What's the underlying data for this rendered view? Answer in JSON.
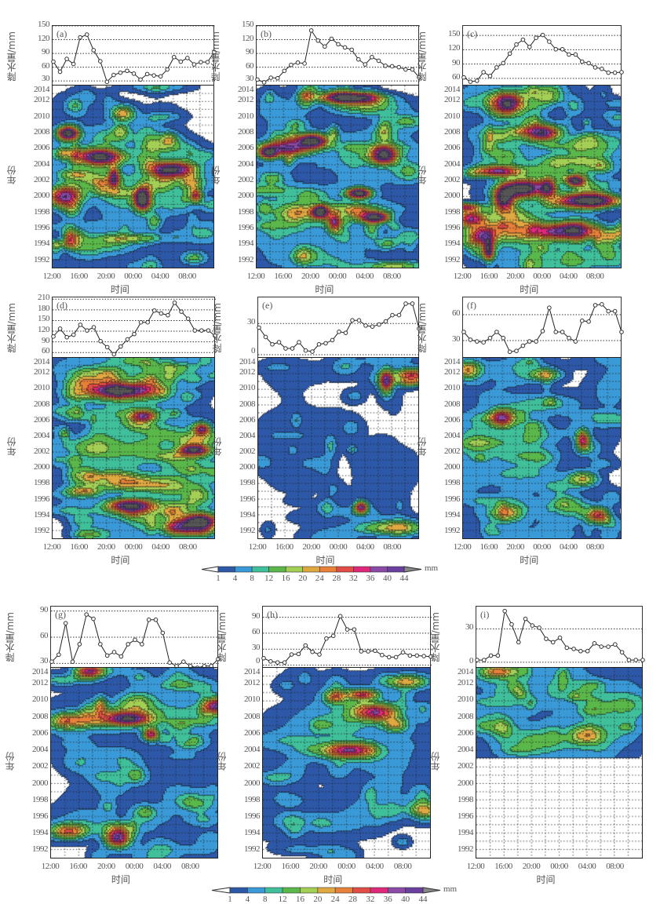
{
  "common": {
    "line_ylabel": "降水量/mm",
    "field_ylabel": "年份",
    "xlabel": "时间",
    "xticks": [
      "12:00",
      "16:00",
      "20:00",
      "00:00",
      "04:00",
      "08:00"
    ],
    "year_ticks": [
      "1992",
      "1994",
      "1996",
      "1998",
      "2000",
      "2002",
      "2004",
      "2006",
      "2008",
      "2010",
      "2012",
      "2014"
    ]
  },
  "colorbar": {
    "unit": "mm",
    "ticks": [
      "1",
      "4",
      "8",
      "12",
      "16",
      "20",
      "24",
      "28",
      "32",
      "36",
      "40",
      "44"
    ],
    "colors": [
      "#2d58a8",
      "#3a9ad8",
      "#3fbf9a",
      "#5ab84a",
      "#a3cf55",
      "#e0a840",
      "#e8803a",
      "#e44d45",
      "#e0287a",
      "#8b4aa8",
      "#6a3fa0"
    ],
    "over_color": "#888888",
    "under_color": "#ffffff"
  },
  "chart_data": [
    {
      "panel": "(a)",
      "type": "line",
      "x_hours_from_1200": "0-24",
      "ylim": [
        20,
        150
      ],
      "yticks": [
        "30",
        "60",
        "90",
        "120",
        "150"
      ],
      "values": [
        72,
        50,
        78,
        67,
        125,
        131,
        97,
        73,
        28,
        43,
        48,
        52,
        46,
        33,
        45,
        42,
        40,
        55,
        82,
        72,
        80,
        66,
        71,
        71,
        93
      ]
    },
    {
      "panel": "(b)",
      "type": "line",
      "ylim": [
        20,
        150
      ],
      "yticks": [
        "30",
        "60",
        "90",
        "120",
        "150"
      ],
      "values": [
        33,
        27,
        37,
        36,
        52,
        65,
        70,
        68,
        140,
        118,
        105,
        122,
        110,
        103,
        98,
        77,
        66,
        82,
        74,
        63,
        62,
        60,
        55,
        55,
        38
      ]
    },
    {
      "panel": "(c)",
      "type": "line",
      "ylim": [
        45,
        170
      ],
      "yticks": [
        "60",
        "90",
        "120",
        "150"
      ],
      "values": [
        62,
        53,
        55,
        73,
        65,
        83,
        92,
        112,
        131,
        141,
        126,
        145,
        151,
        137,
        121,
        121,
        110,
        110,
        95,
        92,
        83,
        80,
        72,
        72,
        73
      ]
    },
    {
      "panel": "(d)",
      "type": "line",
      "ylim": [
        45,
        215
      ],
      "yticks": [
        "60",
        "90",
        "120",
        "150",
        "180",
        "210"
      ],
      "values": [
        105,
        127,
        103,
        110,
        138,
        122,
        131,
        92,
        75,
        55,
        77,
        97,
        112,
        145,
        145,
        178,
        170,
        165,
        200,
        175,
        155,
        122,
        122,
        122,
        107
      ]
    },
    {
      "panel": "(e)",
      "type": "line",
      "ylim": [
        -3,
        55
      ],
      "yticks": [
        "0",
        "30"
      ],
      "values": [
        26,
        17,
        10,
        12,
        6,
        6,
        12,
        4,
        3,
        10,
        11,
        14,
        22,
        21,
        33,
        33,
        28,
        27,
        29,
        32,
        38,
        38,
        49,
        49,
        25
      ]
    },
    {
      "panel": "(f)",
      "type": "line",
      "ylim": [
        10,
        80
      ],
      "yticks": [
        "30",
        "60"
      ],
      "values": [
        40,
        31,
        29,
        28,
        33,
        40,
        33,
        17,
        18,
        24,
        29,
        29,
        41,
        68,
        40,
        40,
        33,
        29,
        53,
        52,
        71,
        72,
        64,
        64,
        40
      ]
    },
    {
      "panel": "(g)",
      "type": "line",
      "ylim": [
        25,
        95
      ],
      "yticks": [
        "30",
        "60",
        "90"
      ],
      "values": [
        32,
        40,
        76,
        32,
        52,
        86,
        81,
        52,
        39,
        43,
        38,
        52,
        57,
        52,
        80,
        80,
        65,
        31,
        27,
        32,
        27,
        25,
        27,
        27,
        35
      ]
    },
    {
      "panel": "(h)",
      "type": "line",
      "ylim": [
        -5,
        110
      ],
      "yticks": [
        "0",
        "30",
        "60",
        "90"
      ],
      "values": [
        13,
        7,
        5,
        5,
        20,
        21,
        37,
        25,
        20,
        50,
        55,
        92,
        67,
        67,
        26,
        26,
        27,
        19,
        15,
        15,
        24,
        18,
        18,
        17,
        16
      ]
    },
    {
      "panel": "(i)",
      "type": "line",
      "ylim": [
        -5,
        50
      ],
      "yticks": [
        "0",
        "30"
      ],
      "values": [
        2,
        2,
        6,
        6,
        46,
        34,
        18,
        39,
        33,
        31,
        21,
        18,
        22,
        13,
        12,
        10,
        10,
        17,
        14,
        14,
        16,
        9,
        2,
        2,
        2
      ]
    }
  ]
}
